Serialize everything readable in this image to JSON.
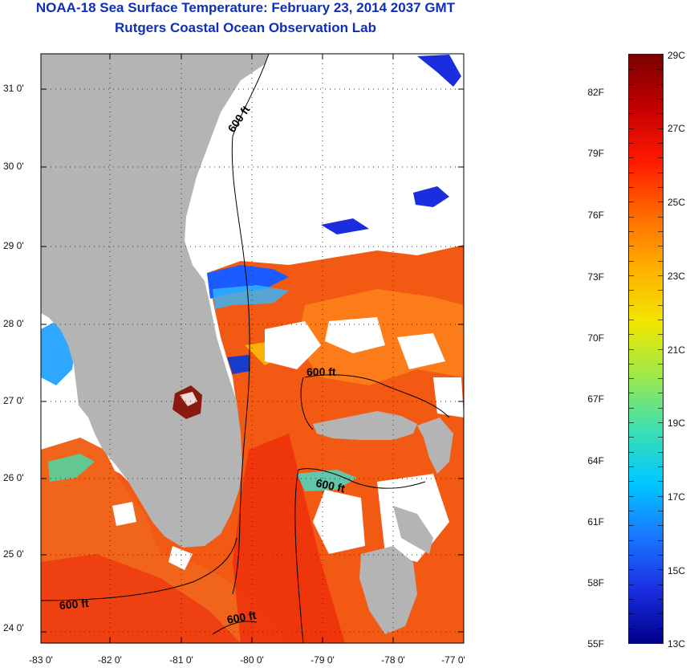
{
  "header": {
    "title_line1": "NOAA-18 Sea Surface Temperature:  February 23, 2014 2037 GMT",
    "title_line2": "Rutgers Coastal Ocean Observation Lab"
  },
  "map": {
    "lon_range": [
      -83,
      -76.8
    ],
    "lat_range": [
      23.8,
      31.4
    ],
    "lat_labels": [
      "31 0'",
      "30 0'",
      "29 0'",
      "28 0'",
      "27 0'",
      "26 0'",
      "25 0'",
      "24 0'"
    ],
    "lon_labels": [
      "-83 0'",
      "-82 0'",
      "-81 0'",
      "-80 0'",
      "-79 0'",
      "-78 0'",
      "-77 0'"
    ],
    "contour_labels": [
      "600 ft",
      "600 ft",
      "600 ft",
      "600 ft",
      "600 ft"
    ]
  },
  "colorbar": {
    "fahrenheit_labels": [
      "82F",
      "79F",
      "76F",
      "73F",
      "70F",
      "67F",
      "64F",
      "61F",
      "58F",
      "55F"
    ],
    "celsius_labels": [
      "29C",
      "27C",
      "25C",
      "23C",
      "21C",
      "19C",
      "17C",
      "15C",
      "13C"
    ],
    "colors": [
      "#7a0000",
      "#c40000",
      "#ff1a00",
      "#ff6a00",
      "#ffb000",
      "#f2e600",
      "#9de84a",
      "#3ee0b0",
      "#00c8ff",
      "#1a78ff",
      "#1a2ee0",
      "#00008c"
    ]
  },
  "colors": {
    "title": "#0f2fb8",
    "land": "#b4b4b4",
    "no_data": "#ffffff",
    "ocean_warm": "#f25a14"
  }
}
